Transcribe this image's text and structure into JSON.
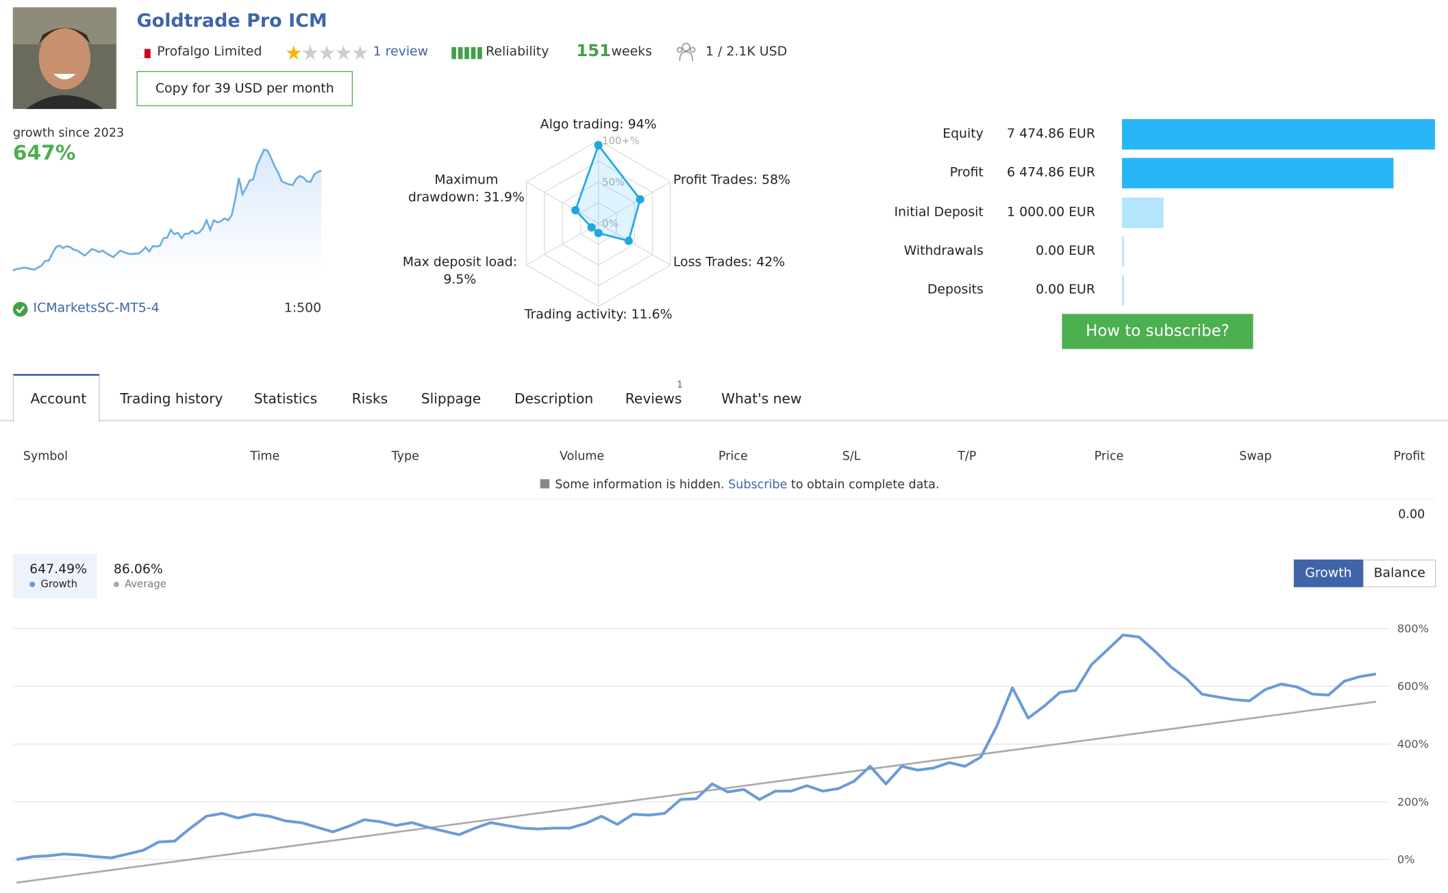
{
  "header": {
    "title": "Goldtrade Pro ICM",
    "broker": "Profalgo Limited",
    "reviews": "1 review",
    "reliability": "Reliability",
    "weeks_value": "151",
    "weeks_label": "weeks",
    "subscribers": "1 / 2.1K USD",
    "copy_button": "Copy for 39 USD per month"
  },
  "summary": {
    "growth_label": "growth since 2023",
    "growth_value": "647%",
    "server": "ICMarketsSC-MT5-4",
    "leverage": "1:500"
  },
  "radar": {
    "labels": [
      "Algo trading: 94%",
      "Profit Trades: 58%",
      "Loss Trades: 42%",
      "Trading activity: 11.6%",
      "Max deposit load: 9.5%",
      "Maximum drawdown: 31.9%"
    ],
    "values": [
      94,
      58,
      42,
      11.6,
      9.5,
      31.9
    ],
    "rlim": [
      0,
      100
    ],
    "ticks": [
      {
        "value": 100,
        "label": "100+%"
      },
      {
        "value": 50,
        "label": "50%"
      },
      {
        "value": 0,
        "label": "0%"
      }
    ]
  },
  "balance": {
    "labels": [
      "Equity",
      "Profit",
      "Initial Deposit",
      "Withdrawals",
      "Deposits"
    ],
    "values": [
      7474.86,
      6474.86,
      1000,
      0,
      0
    ],
    "value_labels": [
      "7 474.86 EUR",
      "6 474.86 EUR",
      "1 000.00 EUR",
      "0.00 EUR",
      "0.00 EUR"
    ],
    "colors": [
      "#29b6f6",
      "#29b6f6",
      "#b3e5fc",
      "#b3e5fc",
      "#b3e5fc"
    ]
  },
  "subscribe_button": "How to subscribe?",
  "tabs": {
    "items": [
      "Account",
      "Trading history",
      "Statistics",
      "Risks",
      "Slippage",
      "Description",
      "Reviews",
      "What's new"
    ],
    "reviews_count": "1"
  },
  "table": {
    "columns": [
      "Symbol",
      "Time",
      "Type",
      "Volume",
      "Price",
      "S/L",
      "T/P",
      "Price",
      "Swap",
      "Profit"
    ],
    "notice_pre": "Some information is hidden.",
    "notice_link": "Subscribe",
    "notice_post": "to obtain complete data.",
    "total": "0.00"
  },
  "growth_legend": {
    "growth_value": "647.49%",
    "average_value": "86.06%"
  },
  "chart_buttons": [
    "Growth",
    "Balance"
  ],
  "chart_data": {
    "type": "line",
    "grid": true,
    "ylim": [
      -80,
      870
    ],
    "yticks": [
      {
        "value": 0,
        "label": "0%"
      },
      {
        "value": 200,
        "label": "200%"
      },
      {
        "value": 400,
        "label": "400%"
      },
      {
        "value": 600,
        "label": "600%"
      },
      {
        "value": 800,
        "label": "800%"
      }
    ],
    "series": [
      {
        "name": "Growth",
        "color": "#6a9bd8",
        "values": [
          0,
          10,
          13,
          19,
          16,
          10,
          6,
          19,
          32,
          61,
          64,
          109,
          150,
          160,
          144,
          157,
          150,
          134,
          128,
          112,
          96,
          115,
          138,
          131,
          118,
          128,
          112,
          99,
          86,
          109,
          128,
          118,
          109,
          106,
          109,
          109,
          125,
          150,
          122,
          157,
          154,
          160,
          208,
          211,
          262,
          234,
          243,
          208,
          237,
          237,
          256,
          237,
          246,
          272,
          323,
          262,
          323,
          310,
          317,
          336,
          323,
          355,
          461,
          595,
          490,
          531,
          579,
          586,
          675,
          726,
          778,
          771,
          723,
          669,
          627,
          573,
          563,
          554,
          550,
          589,
          608,
          598,
          573,
          570,
          618,
          634,
          643
        ]
      },
      {
        "name": "Average",
        "color": "#aaaaaa",
        "values": [
          -80,
          547
        ]
      }
    ]
  }
}
